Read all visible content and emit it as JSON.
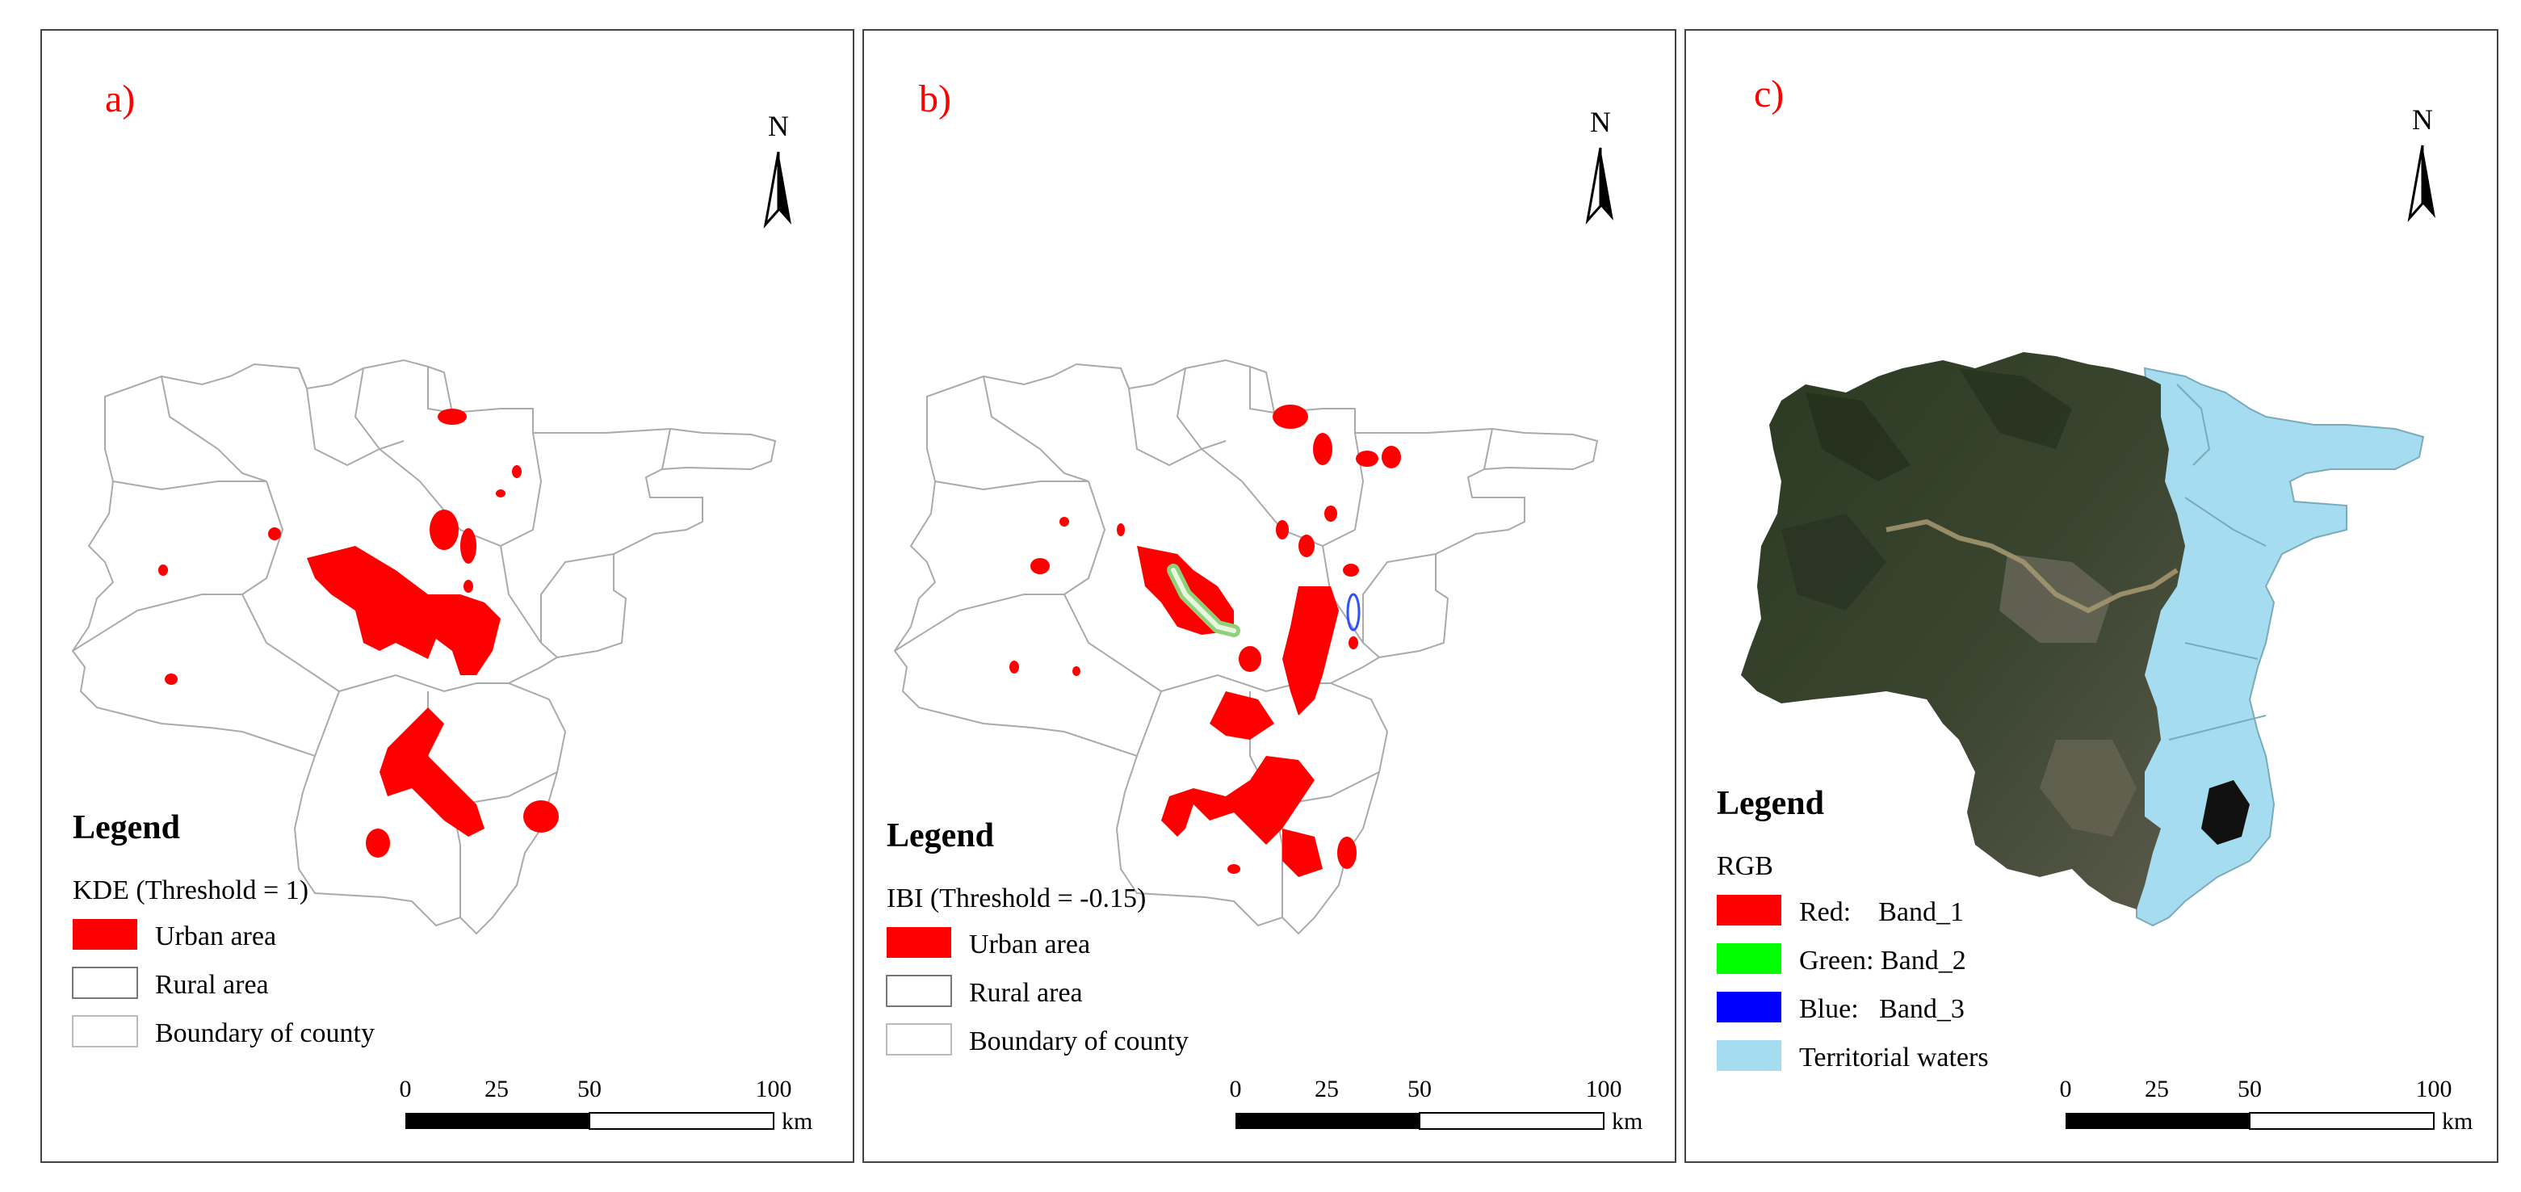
{
  "panels": [
    {
      "label": "a)",
      "north": "N",
      "legend": {
        "title": "Legend",
        "subtitle": "KDE (Threshold = 1)",
        "items": [
          "Urban area",
          "Rural area",
          "Boundary of county"
        ]
      },
      "scale": {
        "ticks": [
          "0",
          "25",
          "50",
          "100"
        ],
        "unit": "km"
      }
    },
    {
      "label": "b)",
      "north": "N",
      "legend": {
        "title": "Legend",
        "subtitle": "IBI (Threshold = -0.15)",
        "items": [
          "Urban area",
          "Rural area",
          "Boundary of county"
        ]
      },
      "scale": {
        "ticks": [
          "0",
          "25",
          "50",
          "100"
        ],
        "unit": "km"
      }
    },
    {
      "label": "c)",
      "north": "N",
      "legend": {
        "title": "Legend",
        "subtitle": "RGB",
        "items": [
          "Red:    Band_1",
          "Green: Band_2",
          "Blue:   Band_3",
          "Territorial waters"
        ]
      },
      "scale": {
        "ticks": [
          "0",
          "25",
          "50",
          "100"
        ],
        "unit": "km"
      }
    }
  ],
  "colors": {
    "urban": "#ff0000",
    "band_red": "#ff0000",
    "band_green": "#00ff00",
    "band_blue": "#0000ff",
    "water": "#a6dcf0",
    "boundary": "#aaaaaa",
    "label": "#ff0000"
  }
}
